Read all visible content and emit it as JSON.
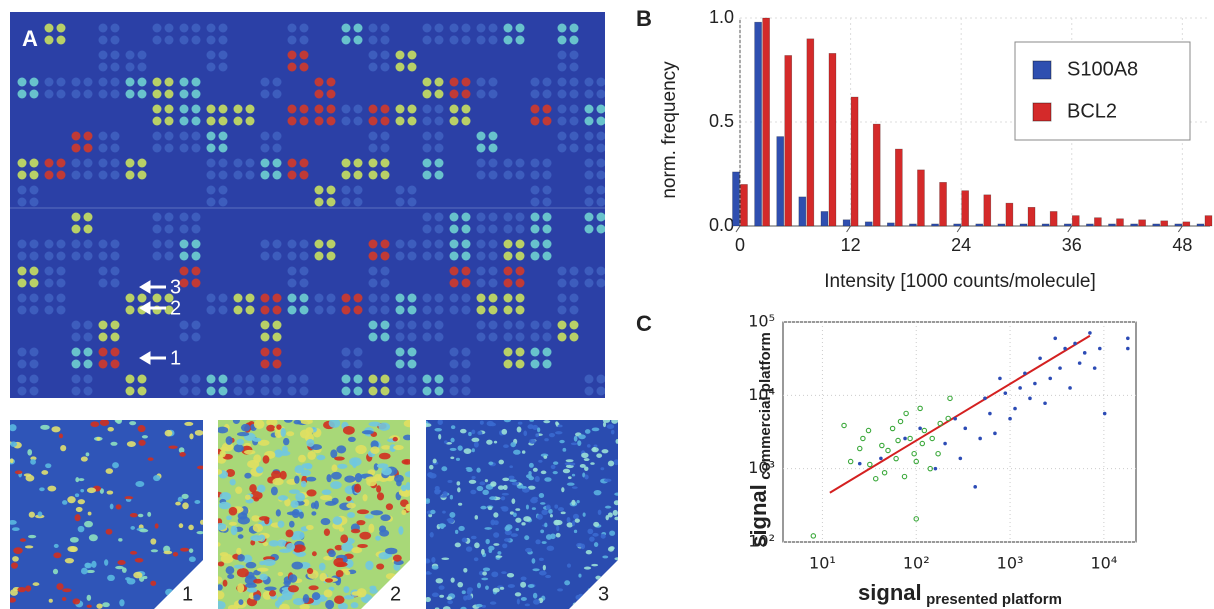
{
  "figure": {
    "panel_labels": [
      "A",
      "B",
      "C"
    ],
    "array_markers": [
      "3",
      "2",
      "1"
    ],
    "inset_labels": [
      "1",
      "2",
      "3"
    ]
  },
  "chart_data": [
    {
      "type": "bar",
      "xlabel": "Intensity [1000 counts/molecule]",
      "ylabel": "norm. frequency",
      "x": [
        0,
        2.4,
        4.8,
        7.2,
        9.6,
        12,
        14.4,
        16.8,
        19.2,
        21.6,
        24,
        26.4,
        28.8,
        31.2,
        33.6,
        36,
        38.4,
        40.8,
        43.2,
        45.6,
        48,
        50.4
      ],
      "series": [
        {
          "name": "S100A8",
          "color": "#2f4fb0",
          "values": [
            0.26,
            0.98,
            0.43,
            0.14,
            0.07,
            0.03,
            0.02,
            0.015,
            0.01,
            0.01,
            0.01,
            0.01,
            0.01,
            0.01,
            0.01,
            0.01,
            0.01,
            0.01,
            0.01,
            0.01,
            0.01,
            0.01
          ]
        },
        {
          "name": "BCL2",
          "color": "#d42a2a",
          "values": [
            0.2,
            1.0,
            0.82,
            0.9,
            0.83,
            0.62,
            0.49,
            0.37,
            0.27,
            0.21,
            0.17,
            0.15,
            0.11,
            0.09,
            0.07,
            0.05,
            0.04,
            0.035,
            0.03,
            0.025,
            0.02,
            0.05
          ]
        }
      ],
      "xlim": [
        0,
        51
      ],
      "xticks": [
        0,
        12,
        24,
        36,
        48
      ],
      "ylim": [
        0,
        1
      ],
      "yticks": [
        {
          "value": 0,
          "label": "0.0"
        },
        {
          "value": 0.5,
          "label": "0.5"
        },
        {
          "value": 1,
          "label": "1.0"
        }
      ],
      "grid": true,
      "legend": "upper right"
    },
    {
      "type": "scatter",
      "xlabel": "signal",
      "xlabel_sub": "presented platform",
      "ylabel": "signal",
      "ylabel_sub": "commercial platform",
      "log_x": true,
      "log_y": true,
      "grid": true,
      "xlim": [
        3.8,
        22000
      ],
      "xticks": [
        {
          "value": 10,
          "label": "10¹"
        },
        {
          "value": 100,
          "label": "10²"
        },
        {
          "value": 1000,
          "label": "10³"
        },
        {
          "value": 10000,
          "label": "10⁴"
        }
      ],
      "ylim": [
        100,
        100000
      ],
      "yticks": [
        {
          "value": 100,
          "label": "10²"
        },
        {
          "value": 1000,
          "label": "10³"
        },
        {
          "value": 10000,
          "label": "10⁴"
        },
        {
          "value": 100000,
          "label": "10⁵"
        }
      ],
      "series": [
        {
          "color": "#2c4bb5",
          "marker": "dot",
          "x": [
            25,
            42,
            76,
            160,
            203,
            295,
            333,
            425,
            480,
            540,
            610,
            690,
            780,
            890,
            1000,
            1130,
            1280,
            1440,
            1630,
            1840,
            2090,
            2360,
            2680,
            3030,
            3410,
            3860,
            4360,
            4930,
            5520,
            6250,
            7100,
            7980,
            9050,
            10200,
            18000,
            18000,
            260,
            110
          ],
          "y": [
            1170,
            1380,
            2580,
            1000,
            2200,
            1380,
            3550,
            565,
            2580,
            9100,
            5650,
            3030,
            17000,
            10700,
            4800,
            6600,
            12600,
            20000,
            9100,
            14500,
            32000,
            7800,
            17000,
            60000,
            23500,
            43500,
            12600,
            51000,
            27500,
            38000,
            71000,
            23500,
            43500,
            5650,
            60000,
            43500,
            4800,
            3550
          ]
        },
        {
          "color": "#3aa83a",
          "marker": "circle",
          "x": [
            8,
            17,
            20,
            25,
            27,
            31,
            32,
            37,
            43,
            46,
            50,
            56,
            61,
            64,
            68,
            75,
            78,
            86,
            95,
            100,
            110,
            116,
            122,
            141,
            148,
            171,
            180,
            219,
            229,
            100
          ],
          "y": [
            121,
            3880,
            1250,
            1880,
            2580,
            3310,
            1140,
            730,
            2070,
            880,
            1770,
            3530,
            1370,
            2420,
            4400,
            780,
            5660,
            2580,
            1600,
            1250,
            6640,
            2200,
            3310,
            1000,
            2580,
            1600,
            4130,
            4840,
            9100,
            207
          ]
        }
      ],
      "fit": {
        "color": "#d42020",
        "x": [
          12,
          7100
        ],
        "y": [
          470,
          65000
        ]
      }
    }
  ]
}
